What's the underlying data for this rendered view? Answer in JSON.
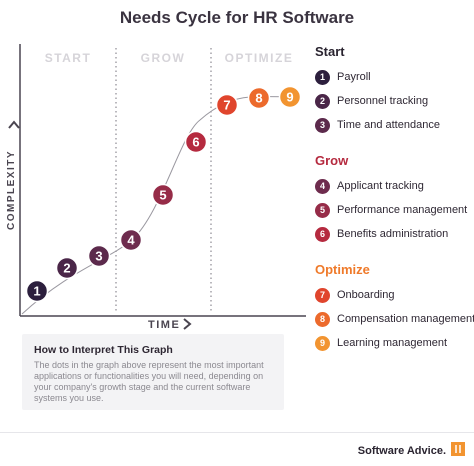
{
  "title": "Needs Cycle for HR Software",
  "phases": [
    "START",
    "GROW",
    "OPTIMIZE"
  ],
  "x_axis_label": "TIME",
  "y_axis_label": "COMPLEXITY",
  "nodes": [
    {
      "n": "1",
      "phase": "Start"
    },
    {
      "n": "2",
      "phase": "Start"
    },
    {
      "n": "3",
      "phase": "Start"
    },
    {
      "n": "4",
      "phase": "Grow"
    },
    {
      "n": "5",
      "phase": "Grow"
    },
    {
      "n": "6",
      "phase": "Grow"
    },
    {
      "n": "7",
      "phase": "Optimize"
    },
    {
      "n": "8",
      "phase": "Optimize"
    },
    {
      "n": "9",
      "phase": "Optimize"
    }
  ],
  "legend": [
    {
      "title": "Start",
      "color": "#2c1f3d",
      "items": [
        {
          "n": "1",
          "label": "Payroll"
        },
        {
          "n": "2",
          "label": "Personnel tracking"
        },
        {
          "n": "3",
          "label": "Time and attendance"
        }
      ]
    },
    {
      "title": "Grow",
      "color": "#b52a3f",
      "items": [
        {
          "n": "4",
          "label": "Applicant tracking"
        },
        {
          "n": "5",
          "label": "Performance management"
        },
        {
          "n": "6",
          "label": "Benefits administration"
        }
      ]
    },
    {
      "title": "Optimize",
      "color": "#ef7a2a",
      "items": [
        {
          "n": "7",
          "label": "Onboarding"
        },
        {
          "n": "8",
          "label": "Compensation management"
        },
        {
          "n": "9",
          "label": "Learning management"
        }
      ]
    }
  ],
  "node_colors": {
    "1": "#2c1f3d",
    "2": "#4a2648",
    "3": "#5c2a4c",
    "4": "#6e2c4e",
    "5": "#962c48",
    "6": "#b52a3f",
    "7": "#e0452d",
    "8": "#ec6a2c",
    "9": "#f29430"
  },
  "interpret": {
    "title": "How to Interpret This Graph",
    "body": "The dots in the graph above represent the most important applications or functionalities you will need, depending on your company's growth stage and the current software systems you use."
  },
  "brand": "Software Advice."
}
